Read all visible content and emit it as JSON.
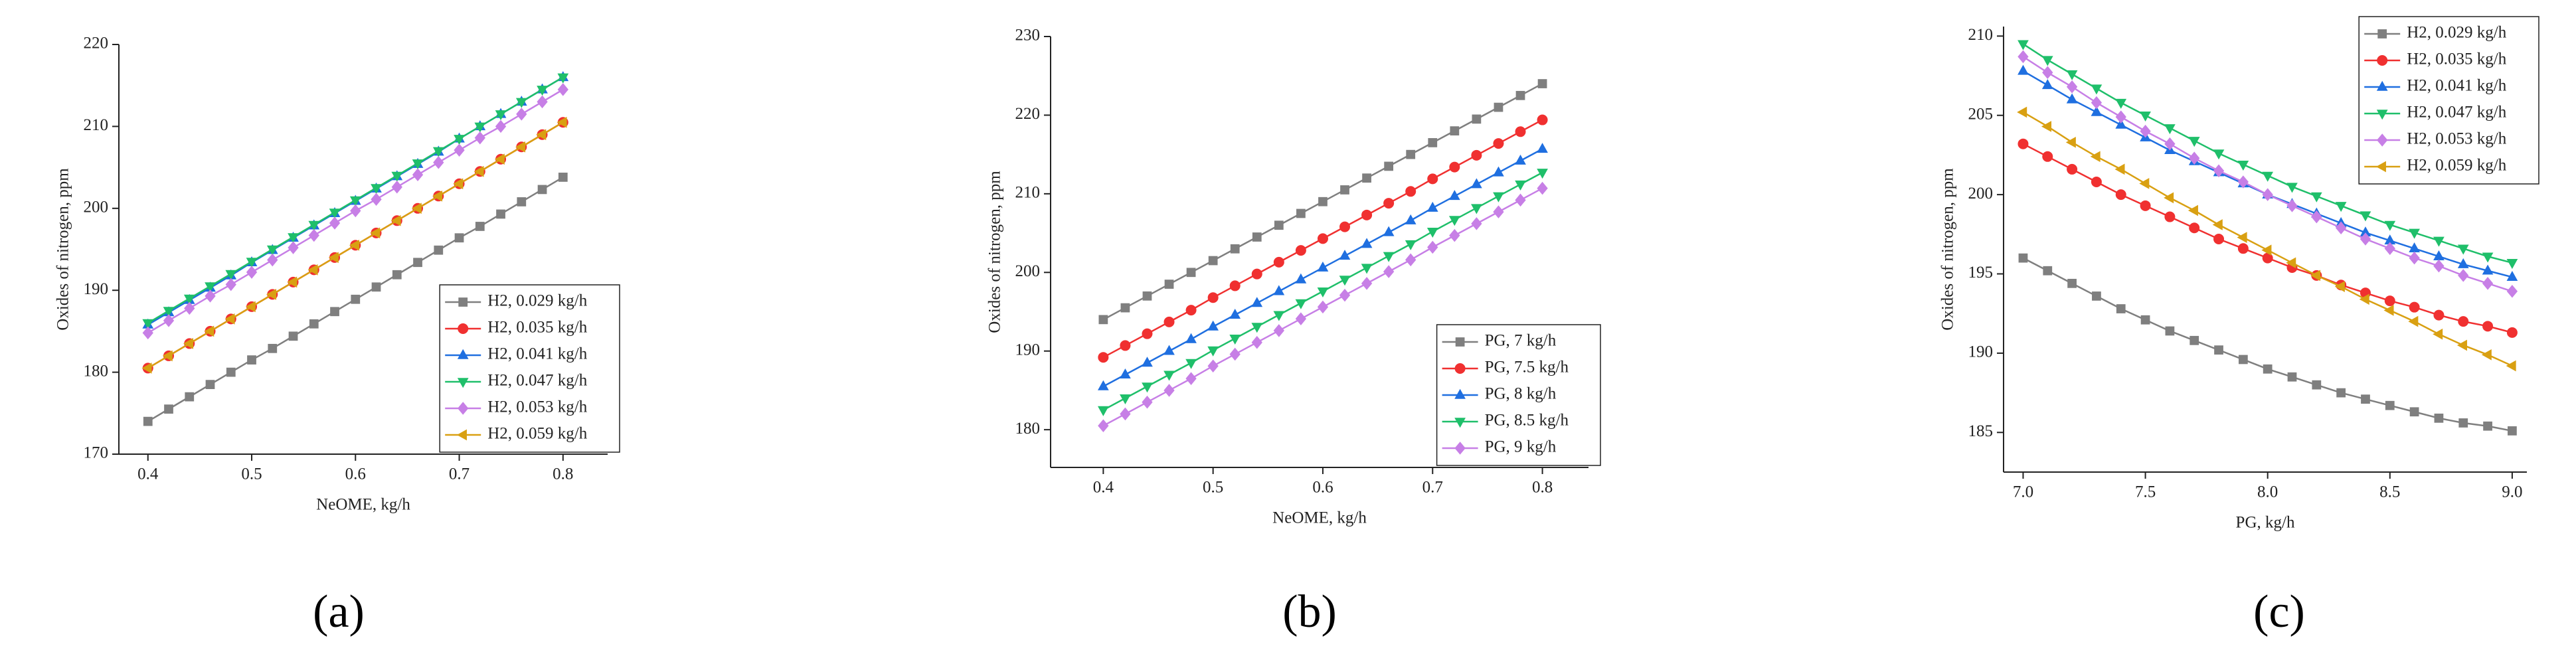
{
  "chart_data": [
    {
      "type": "line",
      "panel_label": "(a)",
      "xlabel": "NeOME, kg/h",
      "ylabel": "Oxides of nitrogen, ppm",
      "x": [
        0.4,
        0.42,
        0.44,
        0.46,
        0.48,
        0.5,
        0.52,
        0.54,
        0.56,
        0.58,
        0.6,
        0.62,
        0.64,
        0.66,
        0.68,
        0.7,
        0.72,
        0.74,
        0.76,
        0.78,
        0.8
      ],
      "xlim": [
        0.372,
        0.843
      ],
      "xticks": [
        0.4,
        0.5,
        0.6,
        0.7,
        0.8
      ],
      "ylim": [
        170,
        220
      ],
      "yticks": [
        170,
        180,
        190,
        200,
        210,
        220
      ],
      "legend": "lower right",
      "series": [
        {
          "name": "H2, 0.029 kg/h",
          "color": "#7f7f7f",
          "marker": "square",
          "values": [
            174.0,
            175.5,
            177.0,
            178.5,
            180.0,
            181.5,
            182.9,
            184.4,
            185.9,
            187.4,
            188.9,
            190.4,
            191.9,
            193.4,
            194.9,
            196.4,
            197.8,
            199.3,
            200.8,
            202.3,
            203.8
          ]
        },
        {
          "name": "H2, 0.035 kg/h",
          "color": "#f03030",
          "marker": "circle",
          "values": [
            180.5,
            182.0,
            183.5,
            185.0,
            186.5,
            188.0,
            189.5,
            191.0,
            192.5,
            194.0,
            195.5,
            197.0,
            198.5,
            200.0,
            201.5,
            203.0,
            204.5,
            206.0,
            207.5,
            209.0,
            210.5
          ]
        },
        {
          "name": "H2, 0.041 kg/h",
          "color": "#1f6fe0",
          "marker": "triangle-up",
          "values": [
            185.8,
            187.3,
            188.8,
            190.3,
            191.8,
            193.4,
            194.9,
            196.4,
            197.9,
            199.4,
            200.9,
            202.4,
            203.9,
            205.4,
            206.9,
            208.5,
            210.0,
            211.5,
            213.0,
            214.5,
            216.0
          ]
        },
        {
          "name": "H2, 0.047 kg/h",
          "color": "#1fbf6a",
          "marker": "triangle-down",
          "values": [
            186.0,
            187.5,
            189.0,
            190.5,
            192.0,
            193.5,
            195.0,
            196.5,
            198.0,
            199.5,
            201.0,
            202.5,
            204.0,
            205.5,
            207.0,
            208.5,
            210.0,
            211.5,
            213.0,
            214.5,
            216.0
          ]
        },
        {
          "name": "H2, 0.053 kg/h",
          "color": "#c77fe6",
          "marker": "diamond",
          "values": [
            184.8,
            186.3,
            187.8,
            189.3,
            190.7,
            192.2,
            193.7,
            195.2,
            196.7,
            198.2,
            199.7,
            201.1,
            202.6,
            204.1,
            205.6,
            207.1,
            208.6,
            210.0,
            211.5,
            213.0,
            214.5
          ]
        },
        {
          "name": "H2, 0.059 kg/h",
          "color": "#d9a012",
          "marker": "triangle-left",
          "values": [
            180.5,
            182.0,
            183.5,
            185.0,
            186.5,
            188.0,
            189.5,
            191.0,
            192.5,
            194.0,
            195.5,
            197.0,
            198.5,
            200.0,
            201.5,
            203.0,
            204.5,
            206.0,
            207.5,
            209.0,
            210.5
          ]
        }
      ]
    },
    {
      "type": "line",
      "panel_label": "(b)",
      "xlabel": "NeOME, kg/h",
      "ylabel": "Oxides of nitrogen, ppm",
      "x": [
        0.4,
        0.42,
        0.44,
        0.46,
        0.48,
        0.5,
        0.52,
        0.54,
        0.56,
        0.58,
        0.6,
        0.62,
        0.64,
        0.66,
        0.68,
        0.7,
        0.72,
        0.74,
        0.76,
        0.78,
        0.8
      ],
      "xlim": [
        0.352,
        0.842
      ],
      "xticks": [
        0.4,
        0.5,
        0.6,
        0.7,
        0.8
      ],
      "ylim": [
        175.2,
        230
      ],
      "yticks": [
        180,
        190,
        200,
        210,
        220,
        230
      ],
      "legend": "lower right",
      "series": [
        {
          "name": "PG, 7 kg/h",
          "color": "#7f7f7f",
          "marker": "square",
          "values": [
            194.0,
            195.5,
            197.0,
            198.5,
            200.0,
            201.5,
            203.0,
            204.5,
            206.0,
            207.5,
            209.0,
            210.5,
            212.0,
            213.5,
            215.0,
            216.5,
            218.0,
            219.5,
            221.0,
            222.5,
            224.0
          ]
        },
        {
          "name": "PG, 7.5 kg/h",
          "color": "#f03030",
          "marker": "circle",
          "values": [
            189.2,
            190.7,
            192.2,
            193.7,
            195.2,
            196.8,
            198.3,
            199.8,
            201.3,
            202.8,
            204.3,
            205.8,
            207.3,
            208.8,
            210.3,
            211.9,
            213.4,
            214.9,
            216.4,
            217.9,
            219.4
          ]
        },
        {
          "name": "PG, 8 kg/h",
          "color": "#1f6fe0",
          "marker": "triangle-up",
          "values": [
            185.5,
            187.0,
            188.5,
            190.0,
            191.5,
            193.1,
            194.6,
            196.1,
            197.6,
            199.1,
            200.6,
            202.1,
            203.6,
            205.1,
            206.6,
            208.2,
            209.7,
            211.2,
            212.7,
            214.2,
            215.7
          ]
        },
        {
          "name": "PG, 8.5 kg/h",
          "color": "#1fbf6a",
          "marker": "triangle-down",
          "values": [
            182.5,
            184.0,
            185.5,
            187.0,
            188.5,
            190.1,
            191.6,
            193.1,
            194.6,
            196.1,
            197.6,
            199.1,
            200.6,
            202.1,
            203.6,
            205.2,
            206.7,
            208.2,
            209.7,
            211.2,
            212.7
          ]
        },
        {
          "name": "PG, 9 kg/h",
          "color": "#c77fe6",
          "marker": "diamond",
          "values": [
            180.5,
            182.0,
            183.5,
            185.0,
            186.5,
            188.1,
            189.6,
            191.1,
            192.6,
            194.1,
            195.6,
            197.1,
            198.6,
            200.1,
            201.6,
            203.2,
            204.7,
            206.2,
            207.7,
            209.2,
            210.7
          ]
        }
      ]
    },
    {
      "type": "line",
      "panel_label": "(c)",
      "xlabel": "PG, kg/h",
      "ylabel": "Oxides of nitrogen, ppm",
      "x": [
        7.0,
        7.1,
        7.2,
        7.3,
        7.4,
        7.5,
        7.6,
        7.7,
        7.8,
        7.9,
        8.0,
        8.1,
        8.2,
        8.3,
        8.4,
        8.5,
        8.6,
        8.7,
        8.8,
        8.9,
        9.0
      ],
      "xlim": [
        6.92,
        9.06
      ],
      "xticks": [
        {
          "value": 7,
          "label": "7.0"
        },
        7.5,
        {
          "value": 8,
          "label": "8.0"
        },
        8.5,
        {
          "value": 9,
          "label": "9.0"
        }
      ],
      "ylim": [
        182.5,
        210.6
      ],
      "yticks": [
        185,
        190,
        195,
        200,
        205,
        210
      ],
      "legend": "upper right",
      "series": [
        {
          "name": "H2, 0.029 kg/h",
          "color": "#7f7f7f",
          "marker": "square",
          "values": [
            196.0,
            195.2,
            194.4,
            193.6,
            192.8,
            192.1,
            191.4,
            190.8,
            190.2,
            189.6,
            189.0,
            188.5,
            188.0,
            187.5,
            187.1,
            186.7,
            186.3,
            185.9,
            185.6,
            185.4,
            185.1
          ]
        },
        {
          "name": "H2, 0.035 kg/h",
          "color": "#f03030",
          "marker": "circle",
          "values": [
            203.2,
            202.4,
            201.6,
            200.8,
            200.0,
            199.3,
            198.6,
            197.9,
            197.2,
            196.6,
            196.0,
            195.4,
            194.9,
            194.3,
            193.8,
            193.3,
            192.9,
            192.4,
            192.0,
            191.7,
            191.3
          ]
        },
        {
          "name": "H2, 0.041 kg/h",
          "color": "#1f6fe0",
          "marker": "triangle-up",
          "values": [
            207.8,
            206.9,
            206.0,
            205.2,
            204.4,
            203.6,
            202.8,
            202.1,
            201.4,
            200.7,
            200.0,
            199.4,
            198.8,
            198.2,
            197.6,
            197.1,
            196.6,
            196.1,
            195.6,
            195.2,
            194.8
          ]
        },
        {
          "name": "H2, 0.047 kg/h",
          "color": "#1fbf6a",
          "marker": "triangle-down",
          "values": [
            209.5,
            208.5,
            207.6,
            206.7,
            205.8,
            205.0,
            204.2,
            203.4,
            202.6,
            201.9,
            201.2,
            200.5,
            199.9,
            199.3,
            198.7,
            198.1,
            197.6,
            197.1,
            196.6,
            196.1,
            195.7
          ]
        },
        {
          "name": "H2, 0.053 kg/h",
          "color": "#c77fe6",
          "marker": "diamond",
          "values": [
            208.7,
            207.7,
            206.8,
            205.8,
            204.9,
            204.0,
            203.2,
            202.3,
            201.5,
            200.8,
            200.0,
            199.3,
            198.6,
            197.9,
            197.2,
            196.6,
            196.0,
            195.5,
            194.9,
            194.4,
            193.9
          ]
        },
        {
          "name": "H2, 0.059 kg/h",
          "color": "#d9a012",
          "marker": "triangle-left",
          "values": [
            205.2,
            204.3,
            203.3,
            202.4,
            201.6,
            200.7,
            199.8,
            199.0,
            198.1,
            197.3,
            196.5,
            195.7,
            194.9,
            194.2,
            193.4,
            192.7,
            192.0,
            191.2,
            190.5,
            189.9,
            189.2
          ]
        }
      ]
    }
  ]
}
